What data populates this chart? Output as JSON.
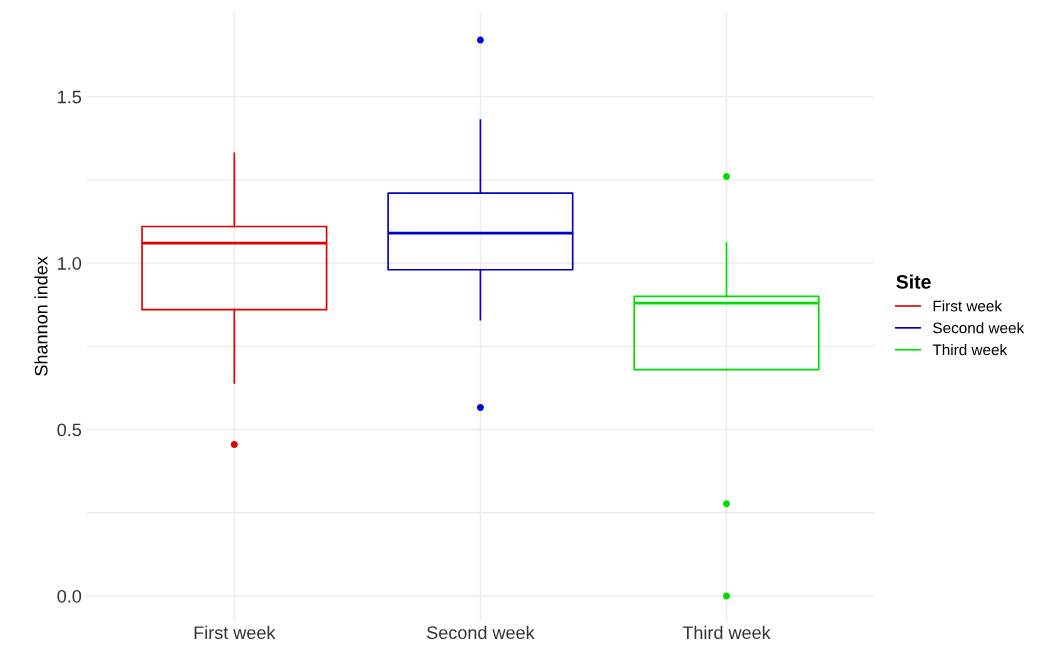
{
  "chart_data": {
    "type": "box",
    "ylabel": "Shannon index",
    "legend_title": "Site",
    "categories": [
      "First week",
      "Second week",
      "Third week"
    ],
    "series": [
      {
        "name": "First week",
        "color": "#e00000",
        "boxes": [
          {
            "low": 0.64,
            "q1": 0.86,
            "median": 1.06,
            "q3": 1.11,
            "high": 1.33,
            "outliers": [
              0.455
            ]
          },
          null,
          null
        ]
      },
      {
        "name": "Second week",
        "color": "#0000d0",
        "boxes": [
          null,
          {
            "low": 0.83,
            "q1": 0.98,
            "median": 1.09,
            "q3": 1.21,
            "high": 1.43,
            "outliers": [
              1.67,
              0.566
            ]
          },
          null
        ]
      },
      {
        "name": "Third week",
        "color": "#00e000",
        "boxes": [
          null,
          null,
          {
            "low": 0.68,
            "q1": 0.68,
            "median": 0.88,
            "q3": 0.9,
            "high": 1.06,
            "outliers": [
              1.26,
              0.277,
              0.0
            ]
          }
        ]
      }
    ],
    "ylim": [
      -0.075,
      1.755
    ],
    "yticks": [
      {
        "value": 0,
        "label": "0.0"
      },
      {
        "value": 0.25,
        "label": null
      },
      {
        "value": 0.5,
        "label": "0.5"
      },
      {
        "value": 0.75,
        "label": null
      },
      {
        "value": 1,
        "label": "1.0"
      },
      {
        "value": 1.25,
        "label": null
      },
      {
        "value": 1.5,
        "label": "1.5"
      }
    ],
    "grid": true,
    "legend": "right"
  }
}
